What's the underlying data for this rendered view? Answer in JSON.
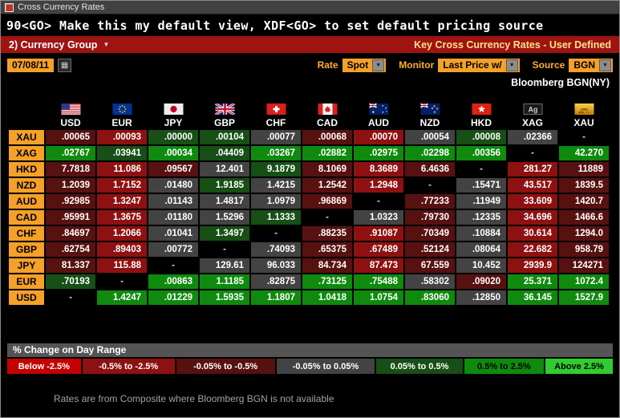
{
  "window": {
    "title": "Cross Currency Rates"
  },
  "command_line": {
    "text": "90<GO> Make this my default view, XDF<GO> to set default pricing source"
  },
  "menu_bar": {
    "group_button": "2) Currency Group",
    "screen_title": "Key Cross Currency Rates - User Defined"
  },
  "controls": {
    "date": "07/08/11",
    "rate_label": "Rate",
    "rate_value": "Spot",
    "monitor_label": "Monitor",
    "monitor_value": "Last Price w/",
    "source_label": "Source",
    "source_value": "BGN"
  },
  "icons": {
    "calendar": "calendar-icon",
    "dropdown_arrow": "chevron-down-icon",
    "app": "app-icon"
  },
  "pricing_note": "Bloomberg BGN(NY)",
  "matrix": {
    "columns": [
      {
        "code": "USD",
        "flag": "us-flag"
      },
      {
        "code": "EUR",
        "flag": "eu-flag"
      },
      {
        "code": "JPY",
        "flag": "jp-flag"
      },
      {
        "code": "GBP",
        "flag": "uk-flag"
      },
      {
        "code": "CHF",
        "flag": "ch-flag"
      },
      {
        "code": "CAD",
        "flag": "ca-flag"
      },
      {
        "code": "AUD",
        "flag": "au-flag"
      },
      {
        "code": "NZD",
        "flag": "nz-flag"
      },
      {
        "code": "HKD",
        "flag": "hk-flag"
      },
      {
        "code": "XAG",
        "flag": "silver-icon"
      },
      {
        "code": "XAU",
        "flag": "gold-icon"
      }
    ],
    "rows": [
      {
        "code": "XAU",
        "values": [
          ".00065",
          ".00093",
          ".00000",
          ".00104",
          ".00077",
          ".00068",
          ".00070",
          ".00054",
          ".00008",
          ".02366",
          "-"
        ],
        "colors": [
          "dr",
          "r",
          "dg",
          "dg",
          "n",
          "dr",
          "r",
          "n",
          "dg",
          "n",
          "x"
        ]
      },
      {
        "code": "XAG",
        "values": [
          ".02767",
          ".03941",
          ".00034",
          ".04409",
          ".03267",
          ".02882",
          ".02975",
          ".02298",
          ".00356",
          "-",
          "42.270"
        ],
        "colors": [
          "g",
          "dg",
          "g",
          "dg",
          "g",
          "g",
          "g",
          "g",
          "g",
          "x",
          "g"
        ]
      },
      {
        "code": "HKD",
        "values": [
          "7.7818",
          "11.086",
          ".09567",
          "12.401",
          "9.1879",
          "8.1069",
          "8.3689",
          "6.4636",
          "-",
          "281.27",
          "11889"
        ],
        "colors": [
          "dr",
          "r",
          "dr",
          "n",
          "dg",
          "dr",
          "r",
          "dr",
          "x",
          "r",
          "dr"
        ]
      },
      {
        "code": "NZD",
        "values": [
          "1.2039",
          "1.7152",
          ".01480",
          "1.9185",
          "1.4215",
          "1.2542",
          "1.2948",
          "-",
          ".15471",
          "43.517",
          "1839.5"
        ],
        "colors": [
          "dr",
          "r",
          "n",
          "dg",
          "n",
          "dr",
          "r",
          "x",
          "n",
          "r",
          "dr"
        ]
      },
      {
        "code": "AUD",
        "values": [
          ".92985",
          "1.3247",
          ".01143",
          "1.4817",
          "1.0979",
          ".96869",
          "-",
          ".77233",
          ".11949",
          "33.609",
          "1420.7"
        ],
        "colors": [
          "dr",
          "r",
          "n",
          "n",
          "n",
          "dr",
          "x",
          "dr",
          "n",
          "r",
          "dr"
        ]
      },
      {
        "code": "CAD",
        "values": [
          ".95991",
          "1.3675",
          ".01180",
          "1.5296",
          "1.1333",
          "-",
          "1.0323",
          ".79730",
          ".12335",
          "34.696",
          "1466.6"
        ],
        "colors": [
          "dr",
          "r",
          "n",
          "n",
          "dg",
          "x",
          "n",
          "dr",
          "n",
          "r",
          "dr"
        ]
      },
      {
        "code": "CHF",
        "values": [
          ".84697",
          "1.2066",
          ".01041",
          "1.3497",
          "-",
          ".88235",
          ".91087",
          ".70349",
          ".10884",
          "30.614",
          "1294.0"
        ],
        "colors": [
          "dr",
          "r",
          "n",
          "dg",
          "x",
          "dr",
          "r",
          "dr",
          "n",
          "r",
          "dr"
        ]
      },
      {
        "code": "GBP",
        "values": [
          ".62754",
          ".89403",
          ".00772",
          "-",
          ".74093",
          ".65375",
          ".67489",
          ".52124",
          ".08064",
          "22.682",
          "958.79"
        ],
        "colors": [
          "dr",
          "r",
          "n",
          "x",
          "n",
          "dr",
          "r",
          "dr",
          "n",
          "r",
          "dr"
        ]
      },
      {
        "code": "JPY",
        "values": [
          "81.337",
          "115.88",
          "-",
          "129.61",
          "96.033",
          "84.734",
          "87.473",
          "67.559",
          "10.452",
          "2939.9",
          "124271"
        ],
        "colors": [
          "dr",
          "r",
          "x",
          "n",
          "n",
          "dr",
          "r",
          "dr",
          "n",
          "r",
          "dr"
        ]
      },
      {
        "code": "EUR",
        "values": [
          ".70193",
          "-",
          ".00863",
          "1.1185",
          ".82875",
          ".73125",
          ".75488",
          ".58302",
          ".09020",
          "25.371",
          "1072.4"
        ],
        "colors": [
          "dg",
          "x",
          "g",
          "g",
          "n",
          "g",
          "g",
          "n",
          "dr",
          "g",
          "g"
        ]
      },
      {
        "code": "USD",
        "values": [
          "-",
          "1.4247",
          ".01229",
          "1.5935",
          "1.1807",
          "1.0418",
          "1.0754",
          ".83060",
          ".12850",
          "36.145",
          "1527.9"
        ],
        "colors": [
          "x",
          "g",
          "g",
          "g",
          "g",
          "g",
          "g",
          "g",
          "n",
          "g",
          "g"
        ]
      }
    ],
    "palette": {
      "br": "#c40000",
      "r": "#8e1111",
      "dr": "#571111",
      "n": "#434343",
      "dg": "#174f17",
      "g": "#0f8a0f",
      "bg": "#30cc30",
      "x": "#000000"
    }
  },
  "legend": {
    "title": "% Change on Day Range",
    "buckets": [
      {
        "label": "Below -2.5%",
        "key": "br",
        "text": "#ffffff"
      },
      {
        "label": "-0.5% to -2.5%",
        "key": "r",
        "text": "#ffffff"
      },
      {
        "label": "-0.05% to -0.5%",
        "key": "dr",
        "text": "#ffffff"
      },
      {
        "label": "-0.05% to 0.05%",
        "key": "n",
        "text": "#ffffff"
      },
      {
        "label": "0.05% to 0.5%",
        "key": "dg",
        "text": "#ffffff"
      },
      {
        "label": "0.5% to 2.5%",
        "key": "g",
        "text": "#000000"
      },
      {
        "label": "Above 2.5%",
        "key": "bg",
        "text": "#000000"
      }
    ]
  },
  "footer_note": "Rates are from Composite where Bloomberg BGN is not available"
}
